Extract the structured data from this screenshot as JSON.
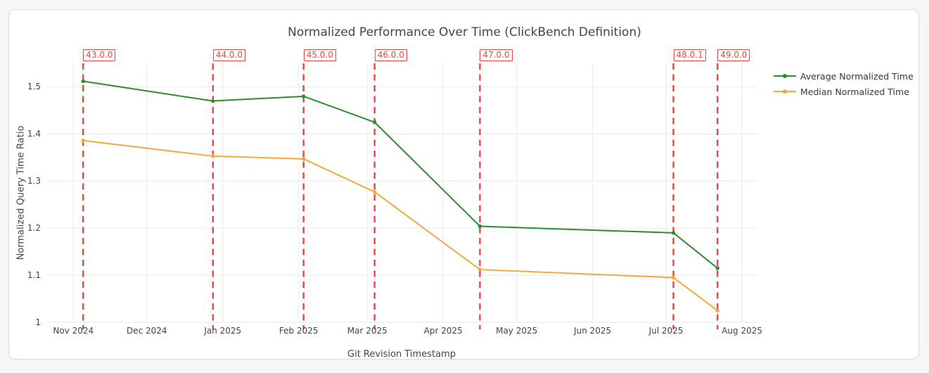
{
  "page": {
    "background_color": "#f4f6f8",
    "card_background": "#ffffff",
    "card_border_color": "#dcdcd6"
  },
  "chart_data": {
    "type": "line",
    "title": "Normalized Performance Over Time (ClickBench Definition)",
    "xlabel": "Git Revision Timestamp",
    "ylabel": "Normalized Query Time Ratio",
    "x": [
      "2024-11-05",
      "2024-12-28",
      "2025-02-03",
      "2025-03-04",
      "2025-04-16",
      "2025-07-04",
      "2025-07-22"
    ],
    "series": [
      {
        "name": "Average Normalized Time",
        "color": "#2e8b2e",
        "values": [
          1.512,
          1.47,
          1.48,
          1.425,
          1.204,
          1.19,
          1.115
        ]
      },
      {
        "name": "Median Normalized Time",
        "color": "#f2a93c",
        "values": [
          1.386,
          1.353,
          1.347,
          1.277,
          1.112,
          1.095,
          1.025
        ]
      }
    ],
    "annotations": [
      {
        "label": "43.0.0",
        "x": "2024-11-05"
      },
      {
        "label": "44.0.0",
        "x": "2024-12-28"
      },
      {
        "label": "45.0.0",
        "x": "2025-02-03"
      },
      {
        "label": "46.0.0",
        "x": "2025-03-04"
      },
      {
        "label": "47.0.0",
        "x": "2025-04-16"
      },
      {
        "label": "48.0.1",
        "x": "2025-07-04"
      },
      {
        "label": "49.0.0",
        "x": "2025-07-22"
      }
    ],
    "vline_color": "#e2483d",
    "x_ticks": [
      {
        "date": "2024-11-01",
        "label": "Nov 2024"
      },
      {
        "date": "2024-12-01",
        "label": "Dec 2024"
      },
      {
        "date": "2025-01-01",
        "label": "Jan 2025"
      },
      {
        "date": "2025-02-01",
        "label": "Feb 2025"
      },
      {
        "date": "2025-03-01",
        "label": "Mar 2025"
      },
      {
        "date": "2025-04-01",
        "label": "Apr 2025"
      },
      {
        "date": "2025-05-01",
        "label": "May 2025"
      },
      {
        "date": "2025-06-01",
        "label": "Jun 2025"
      },
      {
        "date": "2025-07-01",
        "label": "Jul 2025"
      },
      {
        "date": "2025-08-01",
        "label": "Aug 2025"
      }
    ],
    "y_ticks": [
      1,
      1.1,
      1.2,
      1.3,
      1.4,
      1.5
    ],
    "ylim": [
      1,
      1.55
    ],
    "x_range": [
      "2024-10-21",
      "2025-08-07"
    ],
    "grid": true,
    "grid_color": "#ebedef",
    "legend_position": "right-top",
    "text_color": "#42454a"
  }
}
